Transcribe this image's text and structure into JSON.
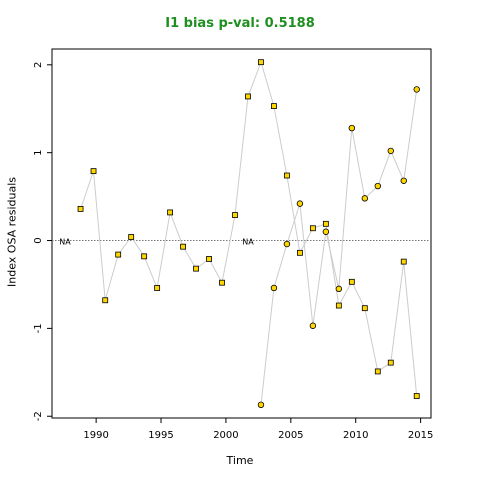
{
  "chart_data": {
    "type": "scatter",
    "title": "I1 bias p-val: 0.5188",
    "title_color": "#1f8f1f",
    "xlabel": "Time",
    "ylabel": "Index OSA residuals",
    "xlim": [
      1986.6,
      2015.8
    ],
    "ylim": [
      -2.02,
      2.18
    ],
    "xticks": [
      1990,
      1995,
      2000,
      2005,
      2010,
      2015
    ],
    "yticks": [
      -2,
      -1,
      0,
      1,
      2
    ],
    "reference_line": 0,
    "point_fill": "#ffd700",
    "line_color": "#cccccc",
    "na_labels": [
      {
        "text": "NA",
        "x": 1987.6,
        "y": 0
      },
      {
        "text": "NA",
        "x": 2001.7,
        "y": 0
      }
    ],
    "series": [
      {
        "marker": "square",
        "points": [
          [
            1988.8,
            0.36
          ],
          [
            1989.8,
            0.79
          ],
          [
            1990.7,
            -0.68
          ],
          [
            1991.7,
            -0.16
          ],
          [
            1992.7,
            0.04
          ],
          [
            1993.7,
            -0.18
          ],
          [
            1994.7,
            -0.54
          ],
          [
            1995.7,
            0.32
          ],
          [
            1996.7,
            -0.07
          ],
          [
            1997.7,
            -0.32
          ],
          [
            1998.7,
            -0.21
          ],
          [
            1999.7,
            -0.48
          ],
          [
            2000.7,
            0.29
          ],
          [
            2001.7,
            1.64
          ],
          [
            2002.7,
            2.03
          ],
          [
            2003.7,
            1.53
          ],
          [
            2004.7,
            0.74
          ],
          [
            2005.7,
            -0.14
          ],
          [
            2006.7,
            0.14
          ],
          [
            2007.7,
            0.19
          ],
          [
            2008.7,
            -0.74
          ],
          [
            2009.7,
            -0.47
          ],
          [
            2010.7,
            -0.77
          ],
          [
            2011.7,
            -1.49
          ],
          [
            2012.7,
            -1.39
          ],
          [
            2013.7,
            -0.24
          ],
          [
            2014.7,
            -1.77
          ]
        ]
      },
      {
        "marker": "circle",
        "points": [
          [
            2002.7,
            -1.87
          ],
          [
            2003.7,
            -0.54
          ],
          [
            2004.7,
            -0.04
          ],
          [
            2005.7,
            0.42
          ],
          [
            2006.7,
            -0.97
          ],
          [
            2007.7,
            0.1
          ],
          [
            2008.7,
            -0.55
          ],
          [
            2009.7,
            1.28
          ],
          [
            2010.7,
            0.48
          ],
          [
            2011.7,
            0.62
          ],
          [
            2012.7,
            1.02
          ],
          [
            2013.7,
            0.68
          ],
          [
            2014.7,
            1.72
          ]
        ]
      }
    ]
  }
}
